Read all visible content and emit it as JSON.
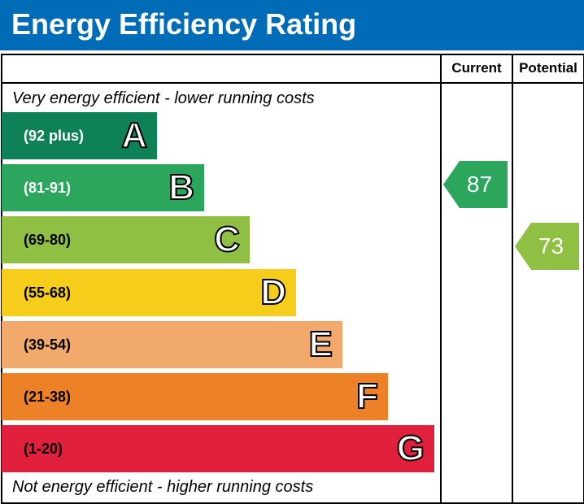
{
  "header": {
    "title": "Energy Efficiency Rating",
    "background": "#006bb6"
  },
  "columns": {
    "current": "Current",
    "potential": "Potential"
  },
  "captions": {
    "top": "Very energy efficient - lower running costs",
    "bottom": "Not energy efficient - higher running costs"
  },
  "chart_data": {
    "type": "bar",
    "title": "Energy Efficiency Rating",
    "bands": [
      {
        "letter": "A",
        "range": "(92 plus)",
        "min": 92,
        "max": 100,
        "color": "#0f8156",
        "range_color": "#ffffff"
      },
      {
        "letter": "B",
        "range": "(81-91)",
        "min": 81,
        "max": 91,
        "color": "#2ba65c",
        "range_color": "#ffffff"
      },
      {
        "letter": "C",
        "range": "(69-80)",
        "min": 69,
        "max": 80,
        "color": "#8fbf43",
        "range_color": "#000000"
      },
      {
        "letter": "D",
        "range": "(55-68)",
        "min": 55,
        "max": 68,
        "color": "#f6cd1a",
        "range_color": "#000000"
      },
      {
        "letter": "E",
        "range": "(39-54)",
        "min": 39,
        "max": 54,
        "color": "#f1a96c",
        "range_color": "#000000"
      },
      {
        "letter": "F",
        "range": "(21-38)",
        "min": 21,
        "max": 38,
        "color": "#ec8128",
        "range_color": "#000000"
      },
      {
        "letter": "G",
        "range": "(1-20)",
        "min": 1,
        "max": 20,
        "color": "#e1203d",
        "range_color": "#000000"
      }
    ],
    "ratings": [
      {
        "name": "Current",
        "value": 87,
        "band": "B",
        "color": "#2ba65c"
      },
      {
        "name": "Potential",
        "value": 73,
        "band": "C",
        "color": "#8fbf43"
      }
    ]
  }
}
